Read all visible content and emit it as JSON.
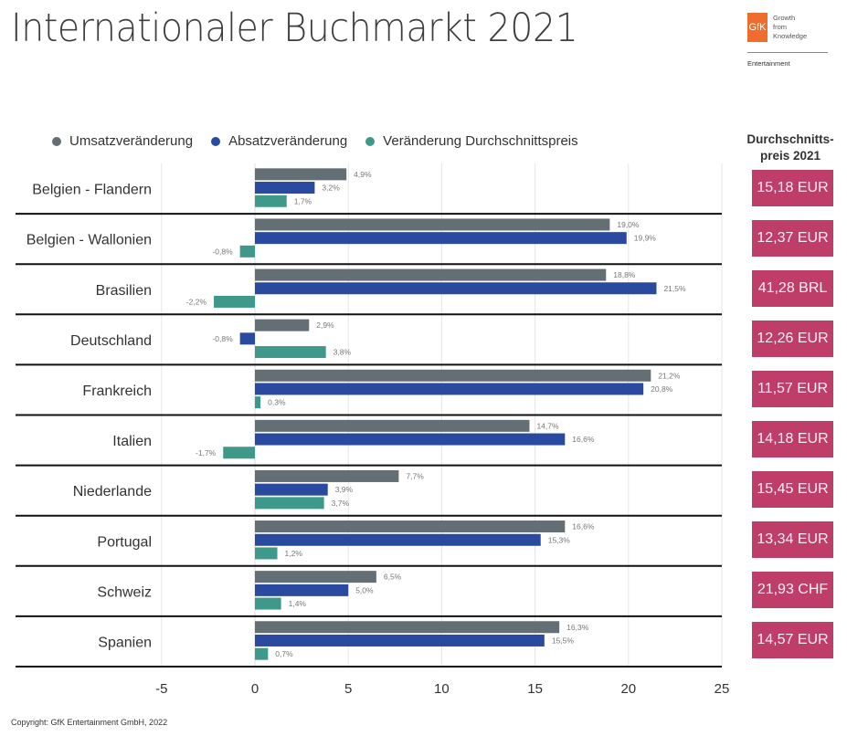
{
  "header": {
    "title": "Internationaler Buchmarkt 2021",
    "logo": {
      "brand": "GfK",
      "tagline": [
        "Growth",
        "from",
        "Knowledge"
      ],
      "division": "Entertainment",
      "brand_color": "#ef6c2d"
    }
  },
  "price_column": {
    "heading_line1": "Durchschnitts-",
    "heading_line2": "preis 2021",
    "box_color": "#be3d69",
    "values": [
      "15,18 EUR",
      "12,37 EUR",
      "41,28 BRL",
      "12,26 EUR",
      "11,57 EUR",
      "14,18 EUR",
      "15,45 EUR",
      "13,34 EUR",
      "21,93 CHF",
      "14,57 EUR"
    ]
  },
  "footer": {
    "copyright": "Copyright: GfK Entertainment GmbH, 2022"
  },
  "chart_data": {
    "type": "bar",
    "orientation": "horizontal",
    "title": "Internationaler Buchmarkt 2021",
    "xlabel": "",
    "ylabel": "",
    "xlim": [
      -5,
      25
    ],
    "xticks": [
      -5,
      0,
      5,
      10,
      15,
      20,
      25
    ],
    "grid": true,
    "legend_position": "top",
    "categories": [
      "Belgien - Flandern",
      "Belgien - Wallonien",
      "Brasilien",
      "Deutschland",
      "Frankreich",
      "Italien",
      "Niederlande",
      "Portugal",
      "Schweiz",
      "Spanien"
    ],
    "series": [
      {
        "name": "Umsatzveränderung",
        "color": "#646e75",
        "values": [
          4.9,
          19.0,
          18.8,
          2.9,
          21.2,
          14.7,
          7.7,
          16.6,
          6.5,
          16.3
        ],
        "labels": [
          "4,9%",
          "19,0%",
          "18,8%",
          "2,9%",
          "21,2%",
          "14,7%",
          "7,7%",
          "16,6%",
          "6,5%",
          "16,3%"
        ]
      },
      {
        "name": "Absatzveränderung",
        "color": "#2a4aa0",
        "values": [
          3.2,
          19.9,
          21.5,
          -0.8,
          20.8,
          16.6,
          3.9,
          15.3,
          5.0,
          15.5
        ],
        "labels": [
          "3,2%",
          "19,9%",
          "21,5%",
          "-0,8%",
          "20,8%",
          "16,6%",
          "3,9%",
          "15,3%",
          "5,0%",
          "15,5%"
        ]
      },
      {
        "name": "Veränderung Durchschnittspreis",
        "color": "#3f998a",
        "values": [
          1.7,
          -0.8,
          -2.2,
          3.8,
          0.3,
          -1.7,
          3.7,
          1.2,
          1.4,
          0.7
        ],
        "labels": [
          "1,7%",
          "-0,8%",
          "-2,2%",
          "3,8%",
          "0,3%",
          "-1,7%",
          "3,7%",
          "1,2%",
          "1,4%",
          "0,7%"
        ]
      }
    ]
  }
}
